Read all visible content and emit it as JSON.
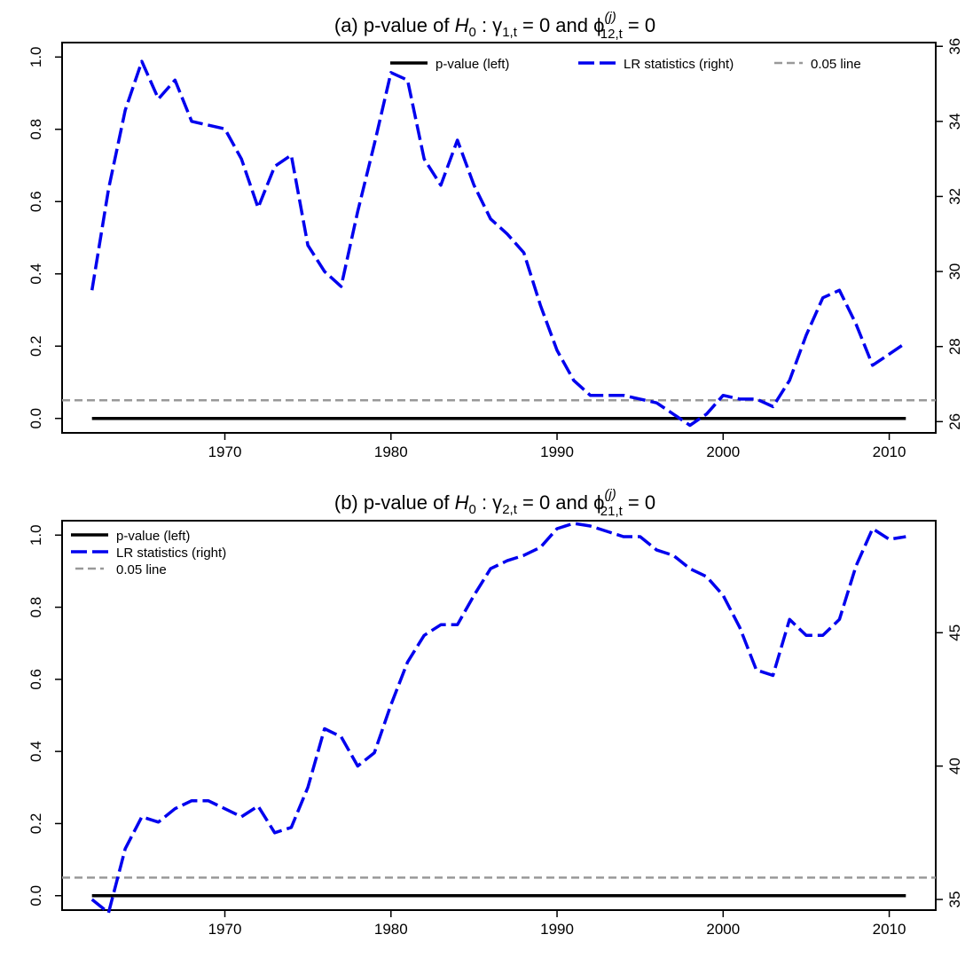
{
  "chart_data": [
    {
      "type": "line",
      "title_prefix": "(a) p-value of ",
      "title_h": "H",
      "title_h_sub": "0",
      "title_gamma": " : γ",
      "title_gamma_sub": "1,t",
      "title_mid": " = 0 and ϕ",
      "title_phi_sup": "(j)",
      "title_phi_sub": "12,t",
      "title_end": " = 0",
      "x_ticks": [
        "1970",
        "1980",
        "1990",
        "2000",
        "2010"
      ],
      "x_tick_values": [
        1970,
        1980,
        1990,
        2000,
        2010
      ],
      "xlim": [
        1960.2,
        2012.8
      ],
      "y_left_ticks": [
        "0.0",
        "0.2",
        "0.4",
        "0.6",
        "0.8",
        "1.0"
      ],
      "y_left_tick_values": [
        0,
        0.2,
        0.4,
        0.6,
        0.8,
        1.0
      ],
      "ylim_left": [
        -0.04,
        1.04
      ],
      "y_right_ticks": [
        "26",
        "28",
        "30",
        "32",
        "34",
        "36"
      ],
      "y_right_tick_values": [
        26,
        28,
        30,
        32,
        34,
        36
      ],
      "ylim_right": [
        25.7,
        36.1
      ],
      "legend": {
        "placement": "top-horizontal",
        "entries": [
          "p-value (left)",
          "LR statistics (right)",
          "0.05 line"
        ]
      },
      "series": [
        {
          "name": "p-value (left)",
          "axis": "left",
          "color": "#000000",
          "style": "solid",
          "x": [
            1962,
            2011
          ],
          "y": [
            0,
            0
          ]
        },
        {
          "name": "LR statistics (right)",
          "axis": "right",
          "color": "#0000ee",
          "style": "dashed",
          "x": [
            1962,
            1963,
            1964,
            1965,
            1966,
            1967,
            1968,
            1969,
            1970,
            1971,
            1972,
            1973,
            1974,
            1975,
            1976,
            1977,
            1978,
            1979,
            1980,
            1981,
            1982,
            1983,
            1984,
            1985,
            1986,
            1987,
            1988,
            1989,
            1990,
            1991,
            1992,
            1993,
            1994,
            1995,
            1996,
            1997,
            1998,
            1999,
            2000,
            2001,
            2002,
            2003,
            2004,
            2005,
            2006,
            2007,
            2008,
            2009,
            2010,
            2011
          ],
          "y": [
            29.5,
            32.2,
            34.3,
            35.6,
            34.6,
            35.1,
            34.0,
            33.9,
            33.8,
            33.0,
            31.7,
            32.8,
            33.1,
            30.7,
            30.0,
            29.6,
            31.6,
            33.4,
            35.3,
            35.1,
            33.0,
            32.3,
            33.5,
            32.3,
            31.4,
            31.0,
            30.5,
            29.1,
            27.9,
            27.1,
            26.7,
            26.7,
            26.7,
            26.6,
            26.5,
            26.2,
            25.9,
            26.2,
            26.7,
            26.6,
            26.6,
            26.4,
            27.1,
            28.3,
            29.3,
            29.5,
            28.6,
            27.5,
            27.8,
            28.1
          ]
        },
        {
          "name": "0.05 line",
          "axis": "left",
          "color": "#999999",
          "style": "dashed",
          "x": [
            1960.2,
            2012.8
          ],
          "y": [
            0.05,
            0.05
          ]
        }
      ]
    },
    {
      "type": "line",
      "title_prefix": "(b) p-value of ",
      "title_h": "H",
      "title_h_sub": "0",
      "title_gamma": " : γ",
      "title_gamma_sub": "2,t",
      "title_mid": " = 0 and ϕ",
      "title_phi_sup": "(j)",
      "title_phi_sub": "21,t",
      "title_end": " = 0",
      "x_ticks": [
        "1970",
        "1980",
        "1990",
        "2000",
        "2010"
      ],
      "x_tick_values": [
        1970,
        1980,
        1990,
        2000,
        2010
      ],
      "xlim": [
        1960.2,
        2012.8
      ],
      "y_left_ticks": [
        "0.0",
        "0.2",
        "0.4",
        "0.6",
        "0.8",
        "1.0"
      ],
      "y_left_tick_values": [
        0,
        0.2,
        0.4,
        0.6,
        0.8,
        1.0
      ],
      "ylim_left": [
        -0.04,
        1.04
      ],
      "y_right_ticks": [
        "35",
        "40",
        "45"
      ],
      "y_right_tick_values": [
        35,
        40,
        45
      ],
      "ylim_right": [
        34.6,
        49.2
      ],
      "legend": {
        "placement": "top-left",
        "entries": [
          "p-value (left)",
          "LR statistics (right)",
          "0.05 line"
        ]
      },
      "series": [
        {
          "name": "p-value (left)",
          "axis": "left",
          "color": "#000000",
          "style": "solid",
          "x": [
            1962,
            2011
          ],
          "y": [
            0,
            0
          ]
        },
        {
          "name": "LR statistics (right)",
          "axis": "right",
          "color": "#0000ee",
          "style": "dashed",
          "x": [
            1962,
            1963,
            1964,
            1965,
            1966,
            1967,
            1968,
            1969,
            1970,
            1971,
            1972,
            1973,
            1974,
            1975,
            1976,
            1977,
            1978,
            1979,
            1980,
            1981,
            1982,
            1983,
            1984,
            1985,
            1986,
            1987,
            1988,
            1989,
            1990,
            1991,
            1992,
            1993,
            1994,
            1995,
            1996,
            1997,
            1998,
            1999,
            2000,
            2001,
            2002,
            2003,
            2004,
            2005,
            2006,
            2007,
            2008,
            2009,
            2010,
            2011
          ],
          "y": [
            35.0,
            34.5,
            36.9,
            38.1,
            37.9,
            38.4,
            38.7,
            38.7,
            38.4,
            38.1,
            38.5,
            37.5,
            37.7,
            39.2,
            41.4,
            41.1,
            40.0,
            40.5,
            42.3,
            43.9,
            44.9,
            45.3,
            45.3,
            46.4,
            47.4,
            47.7,
            47.9,
            48.2,
            48.9,
            49.1,
            49.0,
            48.8,
            48.6,
            48.6,
            48.1,
            47.9,
            47.4,
            47.1,
            46.4,
            45.2,
            43.6,
            43.4,
            45.5,
            44.9,
            44.9,
            45.5,
            47.5,
            48.9,
            48.5,
            48.6
          ]
        },
        {
          "name": "0.05 line",
          "axis": "left",
          "color": "#999999",
          "style": "dashed",
          "x": [
            1960.2,
            2012.8
          ],
          "y": [
            0.05,
            0.05
          ]
        }
      ]
    }
  ]
}
